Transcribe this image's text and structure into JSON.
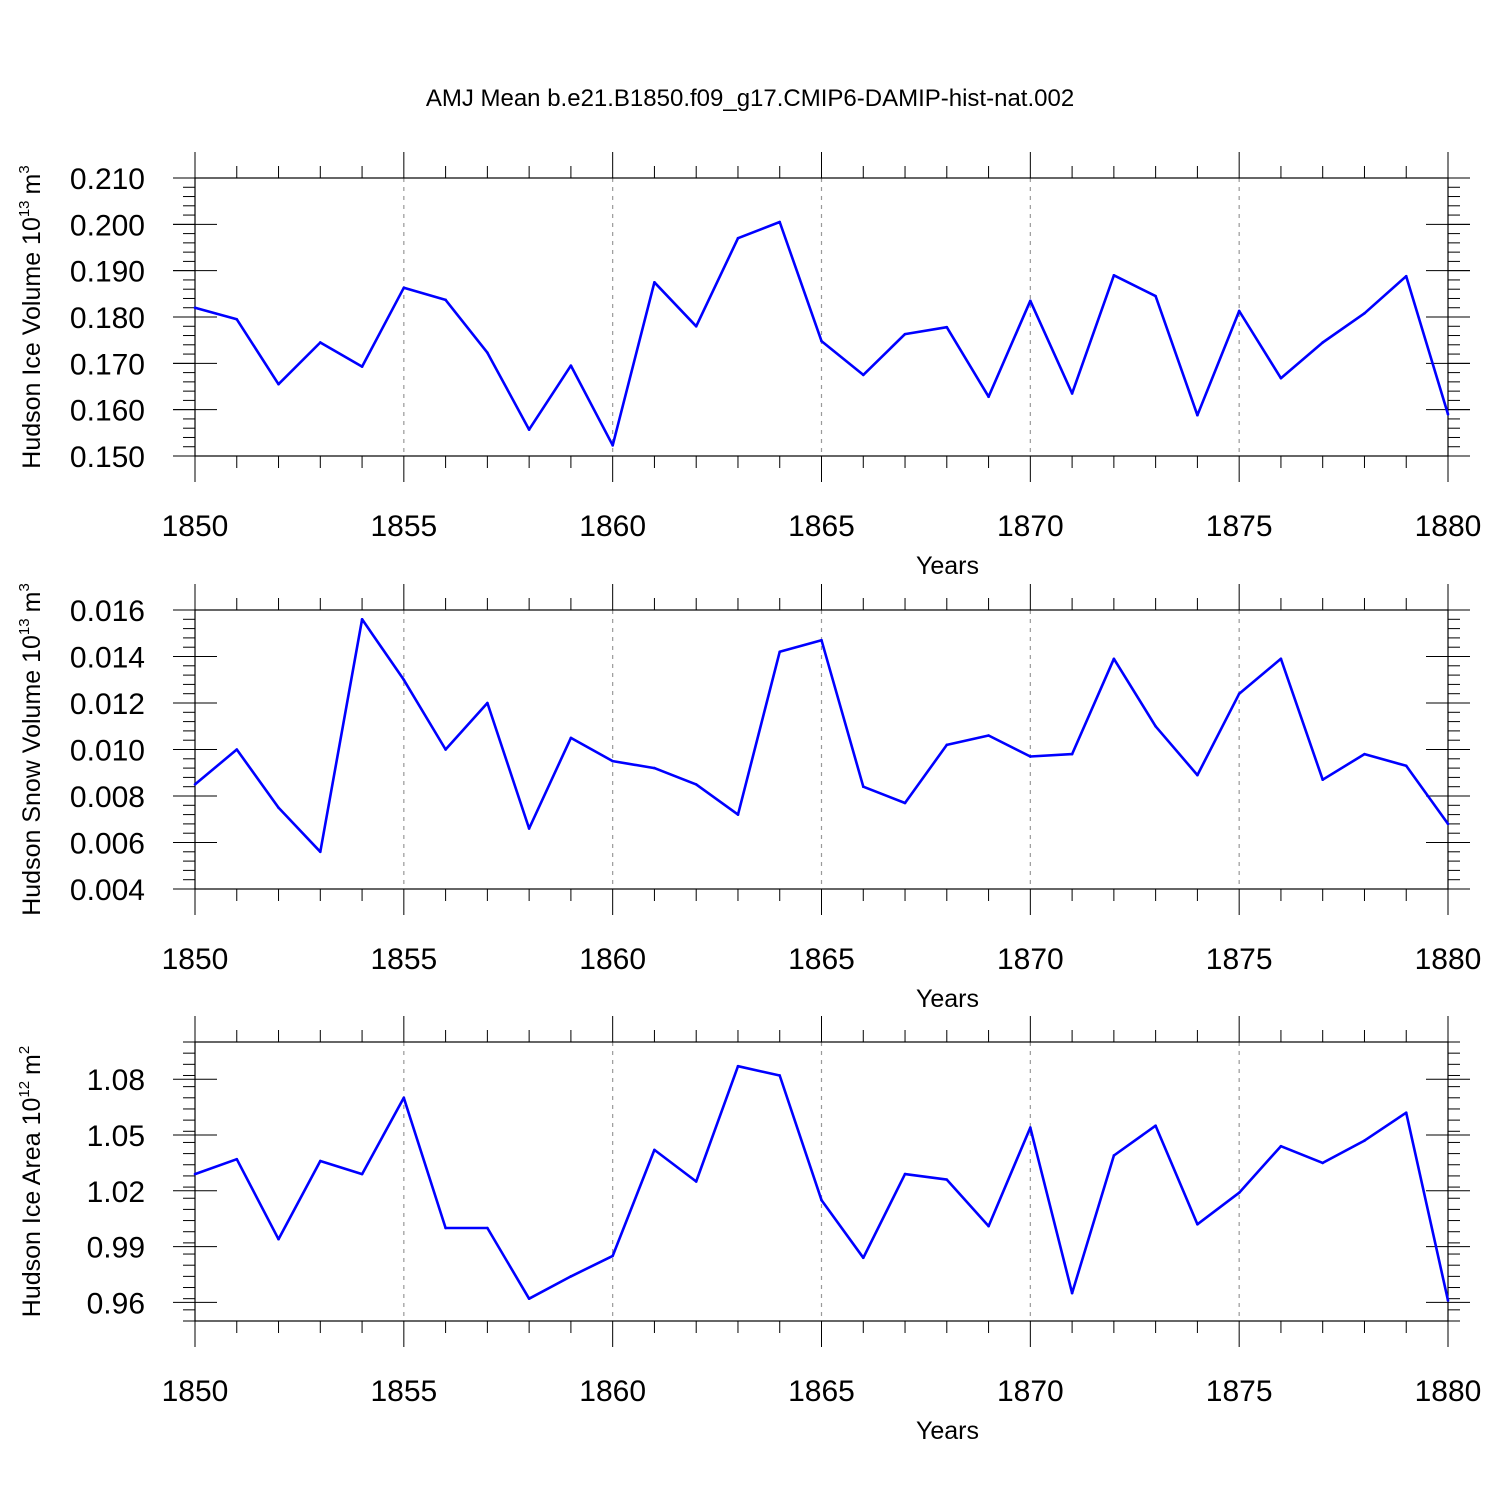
{
  "figure_title": "AMJ Mean b.e21.B1850.f09_g17.CMIP6-DAMIP-hist-nat.002",
  "colors": {
    "series": "#0000ff",
    "grid": "#999999",
    "frame": "#000000"
  },
  "chart_data": [
    {
      "type": "line",
      "xlabel": "Years",
      "ylabel": {
        "text": "Hudson Ice Volume 10",
        "exponent": "13",
        "unit": "m",
        "unit_exponent": "3"
      },
      "xlim": [
        1850,
        1880
      ],
      "ylim": [
        0.15,
        0.21
      ],
      "xticks": [
        1850,
        1855,
        1860,
        1865,
        1870,
        1875,
        1880
      ],
      "xtick_labels": [
        "1850",
        "1855",
        "1860",
        "1865",
        "1870",
        "1875",
        "1880"
      ],
      "yticks": [
        0.15,
        0.16,
        0.17,
        0.18,
        0.19,
        0.2,
        0.21
      ],
      "ytick_labels": [
        "0.150",
        "0.160",
        "0.170",
        "0.180",
        "0.190",
        "0.200",
        "0.210"
      ],
      "grid": "vertical dashed at major x ticks",
      "x": [
        1850,
        1851,
        1852,
        1853,
        1854,
        1855,
        1856,
        1857,
        1858,
        1859,
        1860,
        1861,
        1862,
        1863,
        1864,
        1865,
        1866,
        1867,
        1868,
        1869,
        1870,
        1871,
        1872,
        1873,
        1874,
        1875,
        1876,
        1877,
        1878,
        1879,
        1880
      ],
      "values": [
        0.182,
        0.1795,
        0.1655,
        0.1745,
        0.1693,
        0.1863,
        0.1837,
        0.1723,
        0.1557,
        0.1695,
        0.1523,
        0.1875,
        0.178,
        0.197,
        0.2005,
        0.1748,
        0.1675,
        0.1763,
        0.1778,
        0.1628,
        0.1835,
        0.1635,
        0.189,
        0.1845,
        0.1588,
        0.1813,
        0.1668,
        0.1745,
        0.1808,
        0.1888,
        0.159
      ]
    },
    {
      "type": "line",
      "xlabel": "Years",
      "ylabel": {
        "text": "Hudson Snow Volume 10",
        "exponent": "13",
        "unit": "m",
        "unit_exponent": "3"
      },
      "xlim": [
        1850,
        1880
      ],
      "ylim": [
        0.004,
        0.016
      ],
      "xticks": [
        1850,
        1855,
        1860,
        1865,
        1870,
        1875,
        1880
      ],
      "xtick_labels": [
        "1850",
        "1855",
        "1860",
        "1865",
        "1870",
        "1875",
        "1880"
      ],
      "yticks": [
        0.004,
        0.006,
        0.008,
        0.01,
        0.012,
        0.014,
        0.016
      ],
      "ytick_labels": [
        "0.004",
        "0.006",
        "0.008",
        "0.010",
        "0.012",
        "0.014",
        "0.016"
      ],
      "grid": "vertical dashed at major x ticks",
      "x": [
        1850,
        1851,
        1852,
        1853,
        1854,
        1855,
        1856,
        1857,
        1858,
        1859,
        1860,
        1861,
        1862,
        1863,
        1864,
        1865,
        1866,
        1867,
        1868,
        1869,
        1870,
        1871,
        1872,
        1873,
        1874,
        1875,
        1876,
        1877,
        1878,
        1879,
        1880
      ],
      "values": [
        0.0085,
        0.01,
        0.0075,
        0.0056,
        0.0156,
        0.013,
        0.01,
        0.012,
        0.0066,
        0.0105,
        0.0095,
        0.0092,
        0.0085,
        0.0072,
        0.0142,
        0.0147,
        0.0084,
        0.0077,
        0.0102,
        0.0106,
        0.0097,
        0.0098,
        0.0139,
        0.011,
        0.0089,
        0.0124,
        0.0139,
        0.0087,
        0.0098,
        0.0093,
        0.0068
      ]
    },
    {
      "type": "line",
      "xlabel": "Years",
      "ylabel": {
        "text": "Hudson Ice Area 10",
        "exponent": "12",
        "unit": "m",
        "unit_exponent": "2"
      },
      "xlim": [
        1850,
        1880
      ],
      "ylim": [
        0.95,
        1.1
      ],
      "xticks": [
        1850,
        1855,
        1860,
        1865,
        1870,
        1875,
        1880
      ],
      "xtick_labels": [
        "1850",
        "1855",
        "1860",
        "1865",
        "1870",
        "1875",
        "1880"
      ],
      "yticks": [
        0.96,
        0.99,
        1.02,
        1.05,
        1.08
      ],
      "ytick_labels": [
        "0.96",
        "0.99",
        "1.02",
        "1.05",
        "1.08"
      ],
      "grid": "vertical dashed at major x ticks",
      "x": [
        1850,
        1851,
        1852,
        1853,
        1854,
        1855,
        1856,
        1857,
        1858,
        1859,
        1860,
        1861,
        1862,
        1863,
        1864,
        1865,
        1866,
        1867,
        1868,
        1869,
        1870,
        1871,
        1872,
        1873,
        1874,
        1875,
        1876,
        1877,
        1878,
        1879,
        1880
      ],
      "values": [
        1.029,
        1.037,
        0.994,
        1.036,
        1.029,
        1.07,
        1.0,
        1.0,
        0.962,
        0.974,
        0.985,
        1.042,
        1.025,
        1.087,
        1.082,
        1.015,
        0.984,
        1.029,
        1.026,
        1.001,
        1.054,
        0.965,
        1.039,
        1.055,
        1.002,
        1.019,
        1.044,
        1.035,
        1.047,
        1.062,
        0.961
      ]
    }
  ]
}
